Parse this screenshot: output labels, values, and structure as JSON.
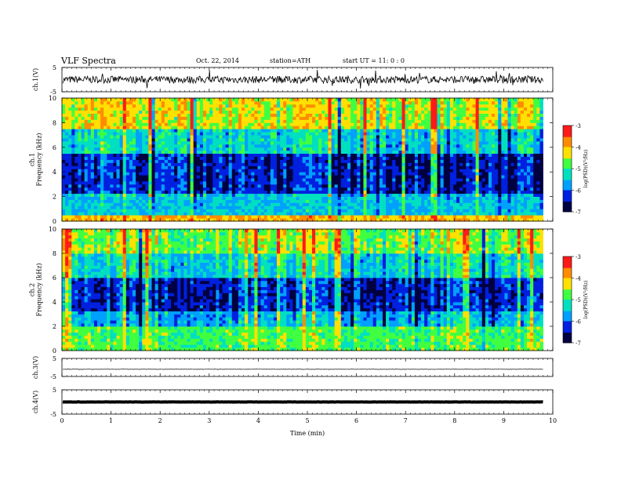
{
  "header": {
    "title": "VLF  Spectra",
    "date": "Oct. 22, 2014",
    "station": "station=ATH",
    "start": "start  UT  =    11: 0  : 0"
  },
  "colorbars": [
    {
      "label": "log(PSD)(V²/Hz)",
      "ticks": [
        "-3",
        "-4",
        "-5",
        "-6",
        "-7"
      ],
      "colors": [
        "#ff1a1a",
        "#ff8c00",
        "#ffe000",
        "#40ff40",
        "#00e0c0",
        "#00a0ff",
        "#0020e0",
        "#000040"
      ]
    },
    {
      "label": "log(PSD)(V²/Hz)",
      "ticks": [
        "-3",
        "-4",
        "-5",
        "-6",
        "-7"
      ],
      "colors": [
        "#ff1a1a",
        "#ff8c00",
        "#ffe000",
        "#40ff40",
        "#00e0c0",
        "#00a0ff",
        "#0020e0",
        "#000040"
      ]
    }
  ],
  "chart_data": [
    {
      "type": "line",
      "panel": "ch1-waveform",
      "ylabel": "ch.1(V)",
      "yticks": [
        "5",
        "-5"
      ],
      "ylim": [
        -5,
        5
      ],
      "xlim": [
        0,
        10
      ],
      "series": [
        {
          "values_description": "noisy waveform centered near 0 V with amplitude about ±1.5 V and occasional spikes",
          "approx_level": 0,
          "approx_amplitude": 1.5,
          "x_end": 9.8
        }
      ]
    },
    {
      "type": "heatmap",
      "panel": "ch1-spectrogram",
      "ylabel": "ch.1\nFrequency  (kHz)",
      "yticks": [
        "0",
        "2",
        "4",
        "6",
        "8",
        "10"
      ],
      "ylim": [
        0,
        10
      ],
      "xlim": [
        0,
        10
      ],
      "zlim": [
        -7,
        -3
      ],
      "bands": [
        {
          "from_khz": 0,
          "to_khz": 0.5,
          "logpsd": -4.0
        },
        {
          "from_khz": 0.5,
          "to_khz": 2.3,
          "logpsd": -5.5
        },
        {
          "from_khz": 2.3,
          "to_khz": 5.5,
          "logpsd": -6.4
        },
        {
          "from_khz": 5.5,
          "to_khz": 7.5,
          "logpsd": -5.4
        },
        {
          "from_khz": 7.5,
          "to_khz": 10,
          "logpsd": -4.4
        }
      ]
    },
    {
      "type": "heatmap",
      "panel": "ch2-spectrogram",
      "ylabel": "ch.2\nFrequency  (kHz)",
      "yticks": [
        "0",
        "2",
        "4",
        "6",
        "8",
        "10"
      ],
      "ylim": [
        0,
        10
      ],
      "xlim": [
        0,
        10
      ],
      "zlim": [
        -7,
        -3
      ],
      "bands": [
        {
          "from_khz": 0,
          "to_khz": 2.0,
          "logpsd": -4.8
        },
        {
          "from_khz": 2.0,
          "to_khz": 3.2,
          "logpsd": -5.6
        },
        {
          "from_khz": 3.2,
          "to_khz": 6.0,
          "logpsd": -6.3
        },
        {
          "from_khz": 6.0,
          "to_khz": 8.0,
          "logpsd": -5.3
        },
        {
          "from_khz": 8.0,
          "to_khz": 10,
          "logpsd": -4.6
        }
      ]
    },
    {
      "type": "line",
      "panel": "ch3-waveform",
      "ylabel": "ch.3(V)",
      "yticks": [
        "5",
        "-5"
      ],
      "ylim": [
        -5,
        5
      ],
      "xlim": [
        0,
        10
      ],
      "series": [
        {
          "values_description": "nearly flat line slightly below 0 V",
          "approx_level": -1,
          "approx_amplitude": 0.1,
          "x_end": 9.8
        }
      ]
    },
    {
      "type": "line",
      "panel": "ch4-waveform",
      "ylabel": "ch.4(V)",
      "yticks": [
        "5",
        "-5"
      ],
      "ylim": [
        -5,
        5
      ],
      "xlim": [
        0,
        10
      ],
      "xlabel": "Time  (min)",
      "xticks": [
        "0",
        "1",
        "2",
        "3",
        "4",
        "5",
        "6",
        "7",
        "8",
        "9",
        "10"
      ],
      "series": [
        {
          "values_description": "flat thick line near 0 V",
          "approx_level": 0,
          "approx_amplitude": 0.05,
          "x_end": 9.8
        }
      ]
    }
  ]
}
